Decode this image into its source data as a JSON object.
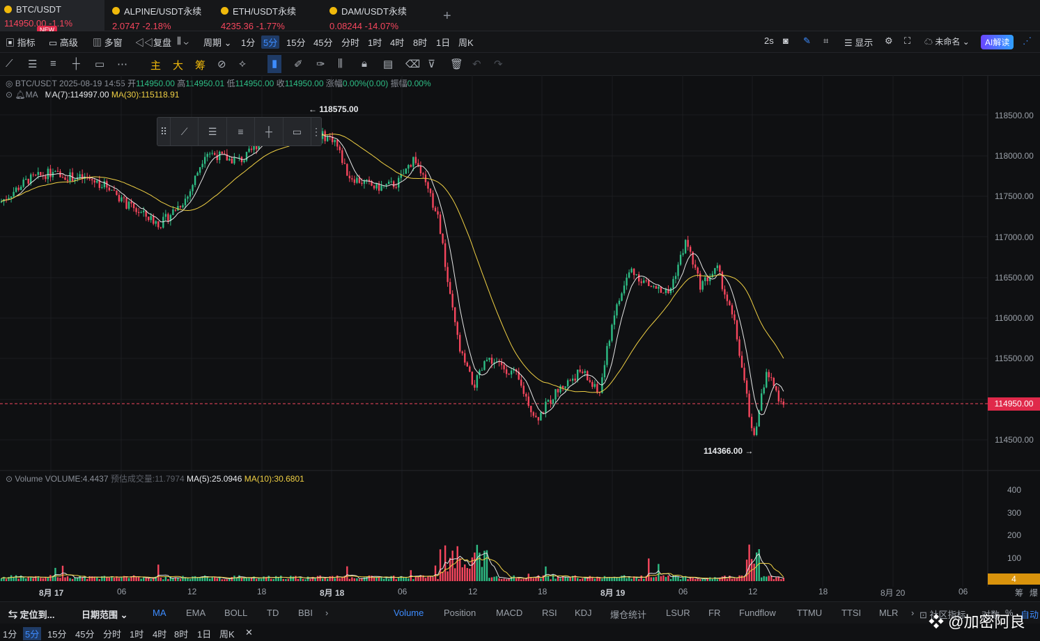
{
  "tabs": [
    {
      "name": "BTC/USDT",
      "price": "114950.00",
      "change": "-1.1%"
    },
    {
      "name": "ALPINE/USDT永续",
      "price": "2.0747",
      "change": "-2.18%"
    },
    {
      "name": "ETH/USDT永续",
      "price": "4235.36",
      "change": "-1.77%"
    },
    {
      "name": "DAM/USDT永续",
      "price": "0.08244",
      "change": "-14.07%"
    }
  ],
  "new_badge": "NEW",
  "add_tab": "+",
  "toolbar": {
    "indicators": "指标",
    "advanced": "高级",
    "multi": "多窗",
    "replay": "复盘",
    "period": "周期",
    "intervals": [
      "1分",
      "5分",
      "15分",
      "45分",
      "分时",
      "1时",
      "4时",
      "8时",
      "1日",
      "周K"
    ],
    "selected_interval": "5分",
    "refresh": "2s",
    "display": "显示",
    "unnamed": "未命名",
    "ai": "AI解读"
  },
  "drawing_tools": {
    "main": "主",
    "big": "大",
    "chip": "筹"
  },
  "ohlc": {
    "symbol": "BTC/USDT",
    "time": "2025-08-19 14:55",
    "open_label": "开",
    "open": "114950.00",
    "high_label": "高",
    "high": "114950.01",
    "low_label": "低",
    "low": "114950.00",
    "close_label": "收",
    "close": "114950.00",
    "change_label": "涨幅",
    "change": "0.00%(0.00)",
    "amp_label": "振幅",
    "amp": "0.00%"
  },
  "ma": {
    "label": "MA",
    "ma7": "MA(7):114997.00",
    "ma30": "MA(30):115118.91"
  },
  "high_marker": "← 118575.00",
  "low_marker": "114366.00 →",
  "price_scale": [
    "118500.00",
    "118000.00",
    "117500.00",
    "117000.00",
    "116500.00",
    "116000.00",
    "115500.00",
    "114500.00"
  ],
  "current_price": "114950.00",
  "volume_info": {
    "label": "Volume",
    "vol": "VOLUME:4.4437",
    "est": "预估成交量:11.7974",
    "ma5": "MA(5):25.0946",
    "ma10": "MA(10):30.6801"
  },
  "volume_scale": [
    "400",
    "300",
    "200",
    "100"
  ],
  "current_volume": "4",
  "time_axis": [
    "8月 17",
    "06",
    "12",
    "18",
    "8月 18",
    "06",
    "12",
    "18",
    "8月 19",
    "06",
    "12",
    "18",
    "8月 20",
    "06"
  ],
  "axis_right": [
    "筹",
    "爆"
  ],
  "indicator_bar": {
    "locate": "定位到...",
    "date_range": "日期范围",
    "main_indicators": [
      "MA",
      "EMA",
      "BOLL",
      "TD",
      "BBI"
    ],
    "sub_indicators": [
      "Volume",
      "Position",
      "MACD",
      "RSI",
      "KDJ",
      "爆仓统计",
      "LSUR",
      "FR",
      "Fundflow",
      "TTMU",
      "TTSI",
      "MLR"
    ],
    "community": "社区指标",
    "log": "对数",
    "percent": "%",
    "auto": "自动"
  },
  "timeframes": [
    "1分",
    "5分",
    "15分",
    "45分",
    "分时",
    "1时",
    "4时",
    "8时",
    "1日",
    "周K"
  ],
  "selected_timeframe": "5分",
  "close_icon_text": "✕",
  "watermark": "@加密阿良",
  "colors": {
    "up": "#2ebd85",
    "down": "#f6465d",
    "accent": "#3d8cff",
    "ma7": "#e6e6e6",
    "ma30": "#f0d044"
  }
}
